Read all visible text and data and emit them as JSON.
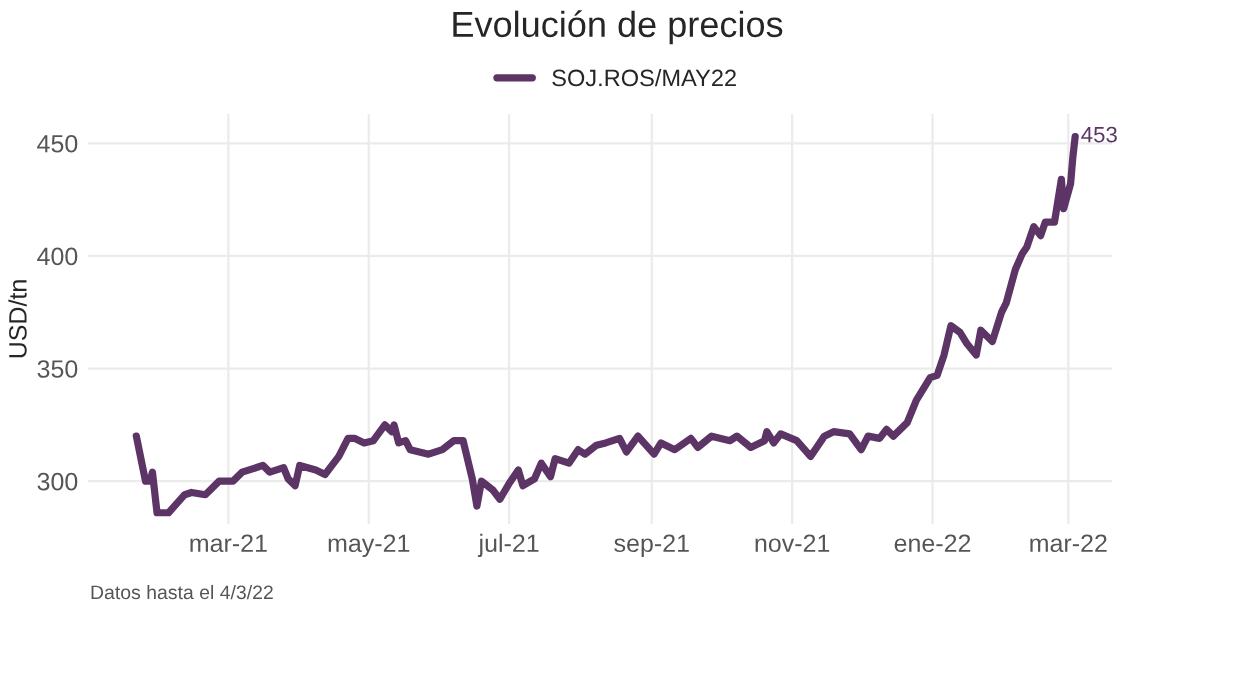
{
  "chart_data": {
    "type": "line",
    "title": "Evolución de precios",
    "ylabel": "USD/tn",
    "x": [
      "2021-01-20",
      "2021-01-24",
      "2021-01-26",
      "2021-01-27",
      "2021-01-29",
      "2021-02-03",
      "2021-02-10",
      "2021-02-13",
      "2021-02-19",
      "2021-02-25",
      "2021-03-03",
      "2021-03-07",
      "2021-03-16",
      "2021-03-19",
      "2021-03-25",
      "2021-03-27",
      "2021-03-30",
      "2021-04-01",
      "2021-04-08",
      "2021-04-12",
      "2021-04-18",
      "2021-04-22",
      "2021-04-25",
      "2021-04-29",
      "2021-05-03",
      "2021-05-08",
      "2021-05-11",
      "2021-05-12",
      "2021-05-14",
      "2021-05-17",
      "2021-05-19",
      "2021-05-27",
      "2021-06-02",
      "2021-06-07",
      "2021-06-11",
      "2021-06-15",
      "2021-06-17",
      "2021-06-19",
      "2021-06-24",
      "2021-06-27",
      "2021-07-01",
      "2021-07-05",
      "2021-07-07",
      "2021-07-12",
      "2021-07-15",
      "2021-07-19",
      "2021-07-21",
      "2021-07-27",
      "2021-07-31",
      "2021-08-03",
      "2021-08-08",
      "2021-08-12",
      "2021-08-18",
      "2021-08-21",
      "2021-08-26",
      "2021-09-02",
      "2021-09-05",
      "2021-09-11",
      "2021-09-18",
      "2021-09-21",
      "2021-09-27",
      "2021-10-05",
      "2021-10-08",
      "2021-10-14",
      "2021-10-20",
      "2021-10-21",
      "2021-10-24",
      "2021-10-27",
      "2021-11-03",
      "2021-11-09",
      "2021-11-15",
      "2021-11-19",
      "2021-11-26",
      "2021-12-01",
      "2021-12-04",
      "2021-12-09",
      "2021-12-12",
      "2021-12-15",
      "2021-12-21",
      "2021-12-25",
      "2021-12-31",
      "2022-01-03",
      "2022-01-06",
      "2022-01-09",
      "2022-01-13",
      "2022-01-16",
      "2022-01-20",
      "2022-01-22",
      "2022-01-27",
      "2022-01-31",
      "2022-02-02",
      "2022-02-06",
      "2022-02-09",
      "2022-02-11",
      "2022-02-14",
      "2022-02-17",
      "2022-02-19",
      "2022-02-23",
      "2022-02-26",
      "2022-02-27",
      "2022-03-02",
      "2022-03-03",
      "2022-03-04"
    ],
    "series": [
      {
        "name": "SOJ.ROS/MAY22",
        "color": "#5c3566",
        "values": [
          320,
          300,
          300,
          304,
          286,
          286,
          294,
          295,
          294,
          300,
          300,
          304,
          307,
          304,
          306,
          301,
          298,
          307,
          305,
          303,
          311,
          319,
          319,
          317,
          318,
          325,
          322,
          325,
          317,
          318,
          314,
          312,
          314,
          318,
          318,
          301,
          289,
          300,
          296,
          292,
          299,
          305,
          298,
          301,
          308,
          302,
          310,
          308,
          314,
          312,
          316,
          317,
          319,
          313,
          320,
          312,
          317,
          314,
          319,
          315,
          320,
          318,
          320,
          315,
          318,
          322,
          317,
          321,
          318,
          311,
          320,
          322,
          321,
          314,
          320,
          319,
          323,
          320,
          326,
          336,
          346,
          347,
          356,
          369,
          366,
          361,
          356,
          367,
          362,
          375,
          379,
          394,
          401,
          404,
          413,
          409,
          415,
          415,
          434,
          421,
          432,
          444,
          453
        ]
      }
    ],
    "annotations": [
      {
        "text": "453",
        "x": "2022-03-04",
        "y": 453
      },
      "Datos hasta el 4/3/22"
    ],
    "xlim": [
      "2020-12-30",
      "2022-03-20"
    ],
    "xticks": [
      {
        "value": "2021-03-01",
        "label": "mar-21"
      },
      {
        "value": "2021-05-01",
        "label": "may-21"
      },
      {
        "value": "2021-07-01",
        "label": "jul-21"
      },
      {
        "value": "2021-09-01",
        "label": "sep-21"
      },
      {
        "value": "2021-11-01",
        "label": "nov-21"
      },
      {
        "value": "2022-01-01",
        "label": "ene-22"
      },
      {
        "value": "2022-03-01",
        "label": "mar-22"
      }
    ],
    "ylim": [
      281,
      463
    ],
    "yticks": [
      300,
      350,
      400,
      450
    ],
    "grid": true,
    "legend": "top",
    "line_style": "solid",
    "marker": "none"
  }
}
